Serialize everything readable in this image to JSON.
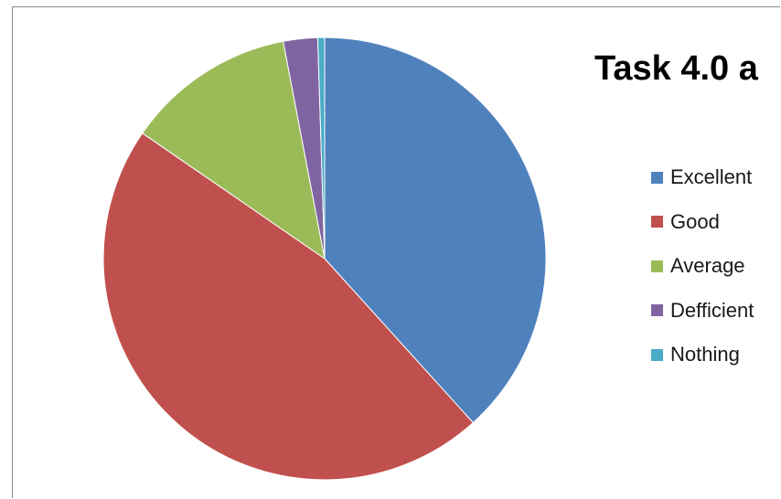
{
  "chart_data": {
    "type": "pie",
    "title": "Task 4.0 a",
    "legend_position": "right",
    "categories": [
      "Excellent",
      "Good",
      "Average",
      "Defficient",
      "Nothing"
    ],
    "values": [
      38.3,
      46.3,
      12.4,
      2.5,
      0.5
    ],
    "colors": [
      "#4f81bd",
      "#c0504d",
      "#9bbb59",
      "#8064a2",
      "#4bacc6"
    ],
    "start_angle_deg": 0,
    "direction": "clockwise"
  }
}
